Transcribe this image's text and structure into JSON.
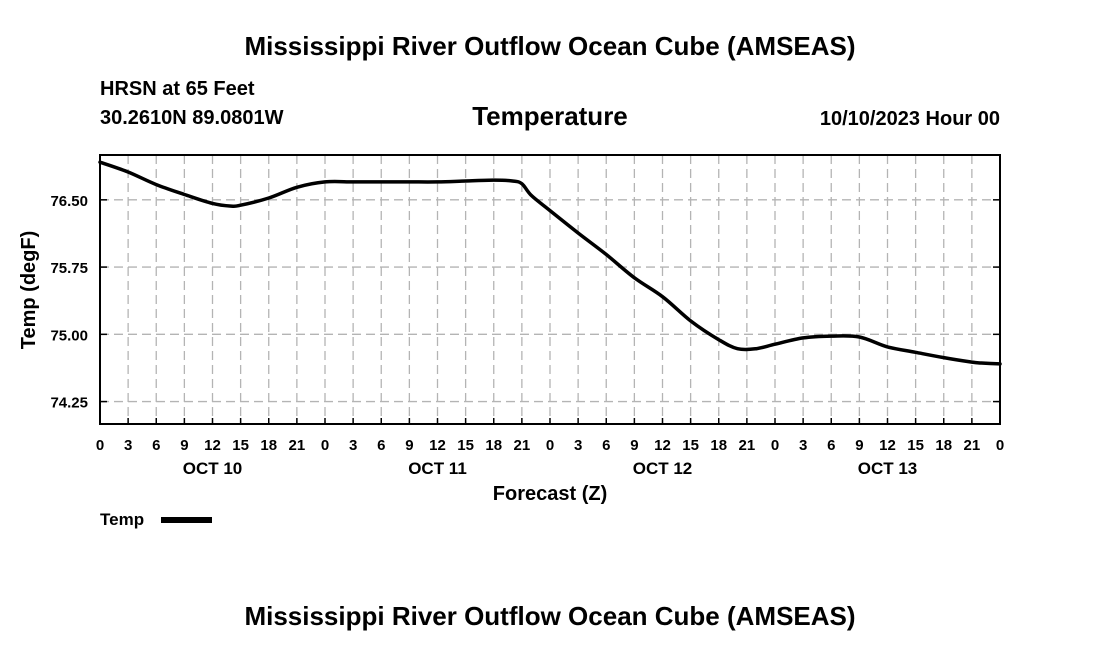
{
  "page": {
    "title_top": "Mississippi River Outflow Ocean Cube (AMSEAS)",
    "title_bottom": "Mississippi River Outflow Ocean Cube (AMSEAS)",
    "station_line1": "HRSN at 65 Feet",
    "station_line2": "30.2610N  89.0801W",
    "date_label": "10/10/2023 Hour 00"
  },
  "chart_data": {
    "type": "line",
    "title": "Temperature",
    "xlabel": "Forecast (Z)",
    "ylabel": "Temp (degF)",
    "x_unit": "forecast hours from 10/10/2023 00Z",
    "xlim": [
      0,
      96
    ],
    "ylim": [
      74.0,
      77.0
    ],
    "yticks": [
      74.25,
      75.0,
      75.75,
      76.5
    ],
    "ytick_labels": [
      "74.25",
      "75.00",
      "75.75",
      "76.50"
    ],
    "grid": true,
    "xticks": [
      0,
      3,
      6,
      9,
      12,
      15,
      18,
      21,
      24,
      27,
      30,
      33,
      36,
      39,
      42,
      45,
      48,
      51,
      54,
      57,
      60,
      63,
      66,
      69,
      72,
      75,
      78,
      81,
      84,
      87,
      90,
      93,
      96
    ],
    "xtick_labels": [
      "0",
      "3",
      "6",
      "9",
      "12",
      "15",
      "18",
      "21",
      "0",
      "3",
      "6",
      "9",
      "12",
      "15",
      "18",
      "21",
      "0",
      "3",
      "6",
      "9",
      "12",
      "15",
      "18",
      "21",
      "0",
      "3",
      "6",
      "9",
      "12",
      "15",
      "18",
      "21",
      "0"
    ],
    "day_labels": [
      {
        "x": 12,
        "label": "OCT 10"
      },
      {
        "x": 36,
        "label": "OCT 11"
      },
      {
        "x": 60,
        "label": "OCT 12"
      },
      {
        "x": 84,
        "label": "OCT 13"
      }
    ],
    "legend": {
      "position": "bottom-left",
      "label": "Temp"
    },
    "series": [
      {
        "name": "Temp",
        "color": "#000000",
        "x": [
          0,
          3,
          6,
          9,
          12,
          14,
          15,
          18,
          21,
          24,
          27,
          30,
          33,
          36,
          39,
          42,
          44,
          45,
          46,
          48,
          51,
          54,
          57,
          60,
          63,
          66,
          68,
          70,
          72,
          75,
          78,
          81,
          84,
          87,
          90,
          93,
          94,
          96
        ],
        "values": [
          76.92,
          76.81,
          76.67,
          76.56,
          76.46,
          76.43,
          76.44,
          76.52,
          76.64,
          76.7,
          76.7,
          76.7,
          76.7,
          76.7,
          76.71,
          76.72,
          76.71,
          76.68,
          76.55,
          76.38,
          76.13,
          75.89,
          75.63,
          75.42,
          75.15,
          74.94,
          74.84,
          74.84,
          74.89,
          74.96,
          74.98,
          74.97,
          74.86,
          74.8,
          74.74,
          74.69,
          74.68,
          74.67
        ]
      }
    ]
  }
}
